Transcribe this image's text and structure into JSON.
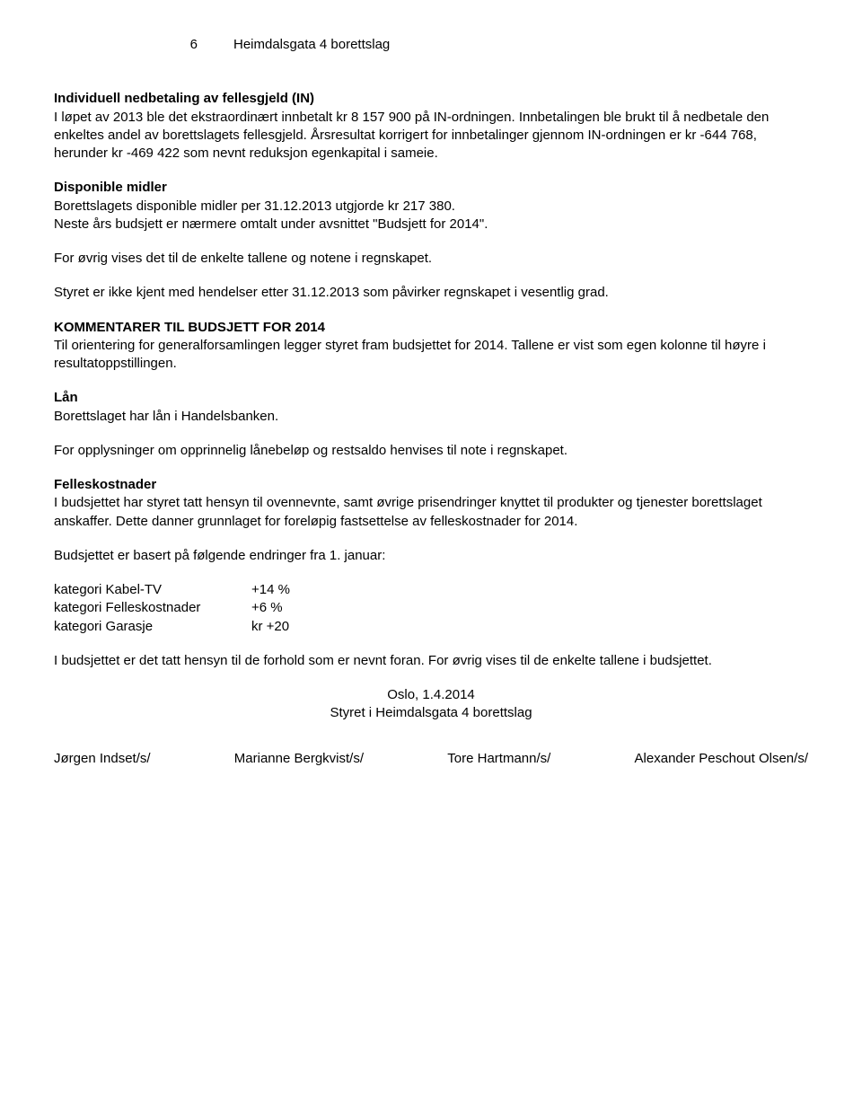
{
  "header": {
    "page_number": "6",
    "doc_title": "Heimdalsgata 4 borettslag"
  },
  "section1": {
    "heading": "Individuell nedbetaling av fellesgjeld (IN)",
    "p1": "I løpet av 2013 ble det ekstraordinært innbetalt kr 8 157 900 på IN-ordningen. Innbetalingen ble brukt til å nedbetale den enkeltes andel av borettslagets fellesgjeld. Årsresultat korrigert for innbetalinger gjennom IN-ordningen er kr -644 768, herunder kr -469 422 som nevnt reduksjon egenkapital i sameie."
  },
  "section2": {
    "heading": "Disponible midler",
    "p1": "Borettslagets disponible midler per 31.12.2013 utgjorde kr 217 380.",
    "p2": "Neste års budsjett er nærmere omtalt under avsnittet \"Budsjett for 2014\"."
  },
  "para3": "For øvrig vises det til de enkelte tallene og notene i regnskapet.",
  "para4": "Styret er ikke kjent med hendelser etter 31.12.2013 som påvirker regnskapet i vesentlig grad.",
  "section5": {
    "heading": "KOMMENTARER TIL BUDSJETT FOR 2014",
    "p1": "Til orientering for generalforsamlingen legger styret fram budsjettet for 2014. Tallene er vist som egen kolonne til høyre i resultatoppstillingen."
  },
  "section6": {
    "heading": "Lån",
    "p1": "Borettslaget har lån i Handelsbanken."
  },
  "para7": "For opplysninger om opprinnelig lånebeløp og restsaldo henvises til note i regnskapet.",
  "section8": {
    "heading": "Felleskostnader",
    "p1": "I budsjettet har styret tatt hensyn til ovennevnte, samt øvrige prisendringer knyttet til produkter og tjenester borettslaget anskaffer. Dette danner grunnlaget for foreløpig fastsettelse av felleskostnader for 2014."
  },
  "para9": "Budsjettet er basert på følgende endringer fra 1. januar:",
  "changes": {
    "rows": [
      {
        "label": "kategori Kabel-TV",
        "value": "+14 %"
      },
      {
        "label": "kategori Felleskostnader",
        "value": "+6 %"
      },
      {
        "label": "kategori Garasje",
        "value": "kr +20"
      }
    ]
  },
  "para10": "I budsjettet er det tatt hensyn til de forhold som er nevnt foran. For øvrig vises til de enkelte tallene i budsjettet.",
  "signature": {
    "place_date": "Oslo, 1.4.2014",
    "board_line": "Styret i Heimdalsgata 4 borettslag",
    "names": [
      "Jørgen Indset/s/",
      "Marianne Bergkvist/s/",
      "Tore Hartmann/s/",
      "Alexander Peschout Olsen/s/"
    ]
  }
}
